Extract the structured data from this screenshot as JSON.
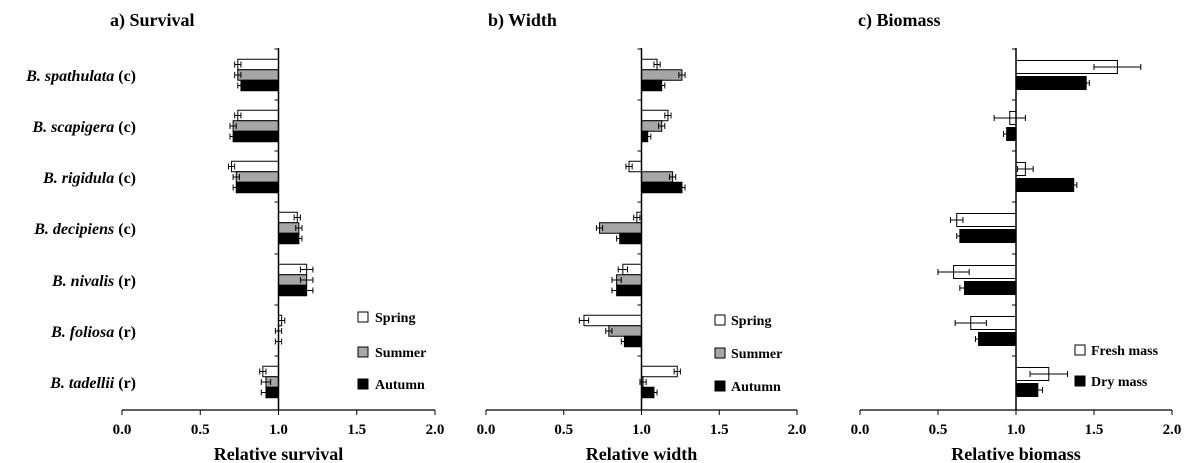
{
  "species": [
    {
      "name": "B. spathulata",
      "tag": "(c)"
    },
    {
      "name": "B. scapigera",
      "tag": "(c)"
    },
    {
      "name": "B. rigidula",
      "tag": "(c)"
    },
    {
      "name": "B. decipiens",
      "tag": "(c)"
    },
    {
      "name": "B. nivalis",
      "tag": "(r)"
    },
    {
      "name": "B. foliosa",
      "tag": "(r)"
    },
    {
      "name": "B. tadellii",
      "tag": "(r)"
    }
  ],
  "colors": {
    "white": "#ffffff",
    "gray": "#a6a6a6",
    "black": "#000000"
  },
  "chart_data": [
    {
      "type": "bar",
      "orientation": "horizontal",
      "title": "a) Survival",
      "xlabel": "Relative survival",
      "xlim": [
        0.0,
        2.0
      ],
      "xticks": [
        "0.0",
        "0.5",
        "1.0",
        "1.5",
        "2.0"
      ],
      "baseline": 1.0,
      "legend_position": "bottom-right",
      "categories": [
        "B. spathulata (c)",
        "B. scapigera (c)",
        "B. rigidula (c)",
        "B. decipiens (c)",
        "B. nivalis (r)",
        "B. foliosa (r)",
        "B. tadellii (r)"
      ],
      "series": [
        {
          "name": "Spring",
          "color": "white",
          "values": [
            0.74,
            0.74,
            0.7,
            1.12,
            1.18,
            1.02,
            0.9
          ],
          "errors": [
            0.02,
            0.02,
            0.02,
            0.02,
            0.04,
            0.02,
            0.02
          ]
        },
        {
          "name": "Summer",
          "color": "gray",
          "values": [
            0.74,
            0.71,
            0.73,
            1.13,
            1.18,
            1.0,
            0.92
          ],
          "errors": [
            0.02,
            0.02,
            0.02,
            0.02,
            0.04,
            0.02,
            0.03
          ]
        },
        {
          "name": "Autumn",
          "color": "black",
          "values": [
            0.76,
            0.71,
            0.73,
            1.13,
            1.18,
            1.0,
            0.92
          ],
          "errors": [
            0.02,
            0.02,
            0.02,
            0.02,
            0.04,
            0.02,
            0.03
          ]
        }
      ]
    },
    {
      "type": "bar",
      "orientation": "horizontal",
      "title": "b) Width",
      "xlabel": "Relative width",
      "xlim": [
        0.0,
        2.0
      ],
      "xticks": [
        "0.0",
        "0.5",
        "1.0",
        "1.5",
        "2.0"
      ],
      "baseline": 1.0,
      "legend_position": "bottom-right",
      "categories": [
        "B. spathulata (c)",
        "B. scapigera (c)",
        "B. rigidula (c)",
        "B. decipiens (c)",
        "B. nivalis (r)",
        "B. foliosa (r)",
        "B. tadellii (r)"
      ],
      "series": [
        {
          "name": "Spring",
          "color": "white",
          "values": [
            1.1,
            1.17,
            0.92,
            0.97,
            0.88,
            0.63,
            1.23
          ],
          "errors": [
            0.02,
            0.02,
            0.02,
            0.02,
            0.03,
            0.03,
            0.02
          ]
        },
        {
          "name": "Summer",
          "color": "gray",
          "values": [
            1.26,
            1.13,
            1.2,
            0.73,
            0.84,
            0.79,
            1.01
          ],
          "errors": [
            0.02,
            0.02,
            0.02,
            0.02,
            0.03,
            0.02,
            0.02
          ]
        },
        {
          "name": "Autumn",
          "color": "black",
          "values": [
            1.13,
            1.04,
            1.26,
            0.86,
            0.84,
            0.89,
            1.08
          ],
          "errors": [
            0.02,
            0.02,
            0.02,
            0.02,
            0.03,
            0.02,
            0.02
          ]
        }
      ]
    },
    {
      "type": "bar",
      "orientation": "horizontal",
      "title": "c) Biomass",
      "xlabel": "Relative biomass",
      "xlim": [
        0.0,
        2.0
      ],
      "xticks": [
        "0.0",
        "0.5",
        "1.0",
        "1.5",
        "2.0"
      ],
      "baseline": 1.0,
      "legend_position": "bottom-right",
      "categories": [
        "B. spathulata (c)",
        "B. scapigera (c)",
        "B. rigidula (c)",
        "B. decipiens (c)",
        "B. nivalis (r)",
        "B. foliosa (r)",
        "B. tadellii (r)"
      ],
      "series": [
        {
          "name": "Fresh mass",
          "color": "white",
          "values": [
            1.65,
            0.96,
            1.06,
            0.62,
            0.6,
            0.71,
            1.21
          ],
          "errors": [
            0.15,
            0.1,
            0.05,
            0.04,
            0.1,
            0.1,
            0.12
          ]
        },
        {
          "name": "Dry mass",
          "color": "black",
          "values": [
            1.45,
            0.94,
            1.37,
            0.64,
            0.67,
            0.76,
            1.14
          ],
          "errors": [
            0.02,
            0.02,
            0.02,
            0.02,
            0.03,
            0.02,
            0.03
          ]
        }
      ]
    }
  ]
}
